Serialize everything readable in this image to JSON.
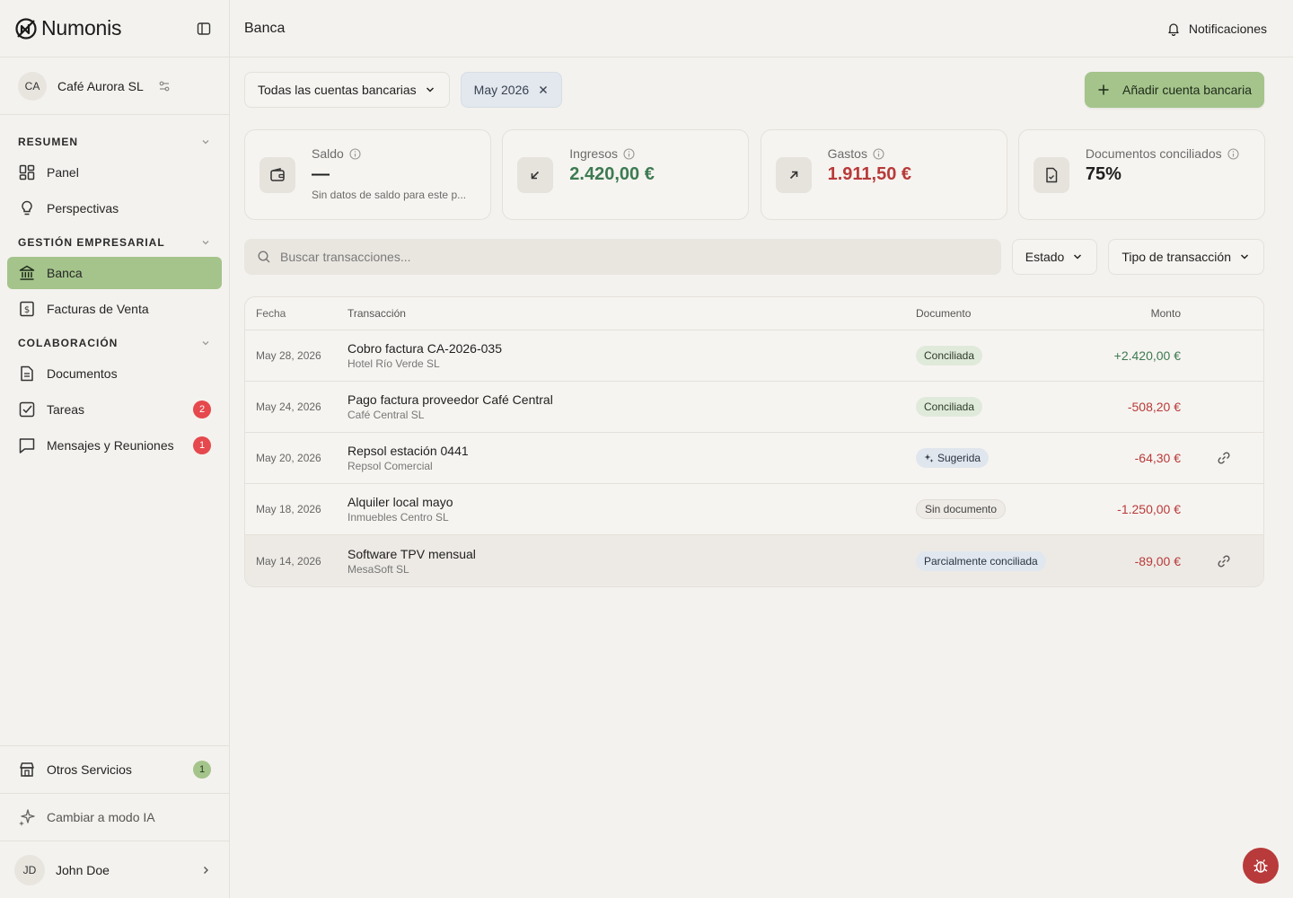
{
  "brand": {
    "name": "Numonis"
  },
  "company": {
    "initials": "CA",
    "name": "Café Aurora SL"
  },
  "sidebar": {
    "sections": [
      {
        "title": "RESUMEN",
        "items": [
          {
            "label": "Panel",
            "icon": "dashboard-icon"
          },
          {
            "label": "Perspectivas",
            "icon": "lightbulb-icon"
          }
        ]
      },
      {
        "title": "GESTIÓN EMPRESARIAL",
        "items": [
          {
            "label": "Banca",
            "icon": "bank-icon",
            "active": true
          },
          {
            "label": "Facturas de Venta",
            "icon": "invoice-icon"
          }
        ]
      },
      {
        "title": "COLABORACIÓN",
        "items": [
          {
            "label": "Documentos",
            "icon": "document-icon"
          },
          {
            "label": "Tareas",
            "icon": "task-icon",
            "badge": "2"
          },
          {
            "label": "Mensajes y Reuniones",
            "icon": "chat-icon",
            "badge": "1"
          }
        ]
      }
    ],
    "other_services": {
      "label": "Otros Servicios",
      "badge": "1"
    },
    "ai_mode": {
      "label": "Cambiar a modo IA"
    },
    "user": {
      "initials": "JD",
      "name": "John Doe"
    }
  },
  "header": {
    "title": "Banca",
    "notifications_label": "Notificaciones"
  },
  "filters": {
    "accounts_label": "Todas las cuentas bancarias",
    "period_chip": "May 2026",
    "add_account_label": "Añadir cuenta bancaria"
  },
  "stats": [
    {
      "label": "Saldo",
      "value": "—",
      "sub": "Sin datos de saldo para este p...",
      "tone": "dark",
      "icon": "wallet-icon"
    },
    {
      "label": "Ingresos",
      "value": "2.420,00 €",
      "sub": "",
      "tone": "green",
      "icon": "arrow-down-left-icon"
    },
    {
      "label": "Gastos",
      "value": "1.911,50 €",
      "sub": "",
      "tone": "red",
      "icon": "arrow-up-right-icon"
    },
    {
      "label": "Documentos conciliados",
      "value": "75%",
      "sub": "",
      "tone": "dark",
      "icon": "file-check-icon"
    }
  ],
  "search": {
    "placeholder": "Buscar transacciones...",
    "estado_label": "Estado",
    "tipo_label": "Tipo de transacción"
  },
  "table": {
    "headers": {
      "date": "Fecha",
      "transaction": "Transacción",
      "document": "Documento",
      "amount": "Monto"
    },
    "rows": [
      {
        "date": "May 28, 2026",
        "title": "Cobro factura CA-2026-035",
        "party": "Hotel Río Verde SL",
        "status": "Conciliada",
        "status_kind": "conciliada",
        "amount": "+2.420,00 €",
        "sign": "pos",
        "link": false
      },
      {
        "date": "May 24, 2026",
        "title": "Pago factura proveedor Café Central",
        "party": "Café Central SL",
        "status": "Conciliada",
        "status_kind": "conciliada",
        "amount": "-508,20 €",
        "sign": "neg",
        "link": false
      },
      {
        "date": "May 20, 2026",
        "title": "Repsol estación 0441",
        "party": "Repsol Comercial",
        "status": "Sugerida",
        "status_kind": "sugerida",
        "amount": "-64,30 €",
        "sign": "neg",
        "link": true
      },
      {
        "date": "May 18, 2026",
        "title": "Alquiler local mayo",
        "party": "Inmuebles Centro SL",
        "status": "Sin documento",
        "status_kind": "sin",
        "amount": "-1.250,00 €",
        "sign": "neg",
        "link": false
      },
      {
        "date": "May 14, 2026",
        "title": "Software TPV mensual",
        "party": "MesaSoft SL",
        "status": "Parcialmente conciliada",
        "status_kind": "parcial",
        "amount": "-89,00 €",
        "sign": "neg",
        "link": true
      }
    ]
  },
  "colors": {
    "accent": "#a4c48b",
    "positive": "#3d7a52",
    "negative": "#b83a3a",
    "danger_badge": "#e5484d",
    "bug_button": "#b83a3a"
  }
}
